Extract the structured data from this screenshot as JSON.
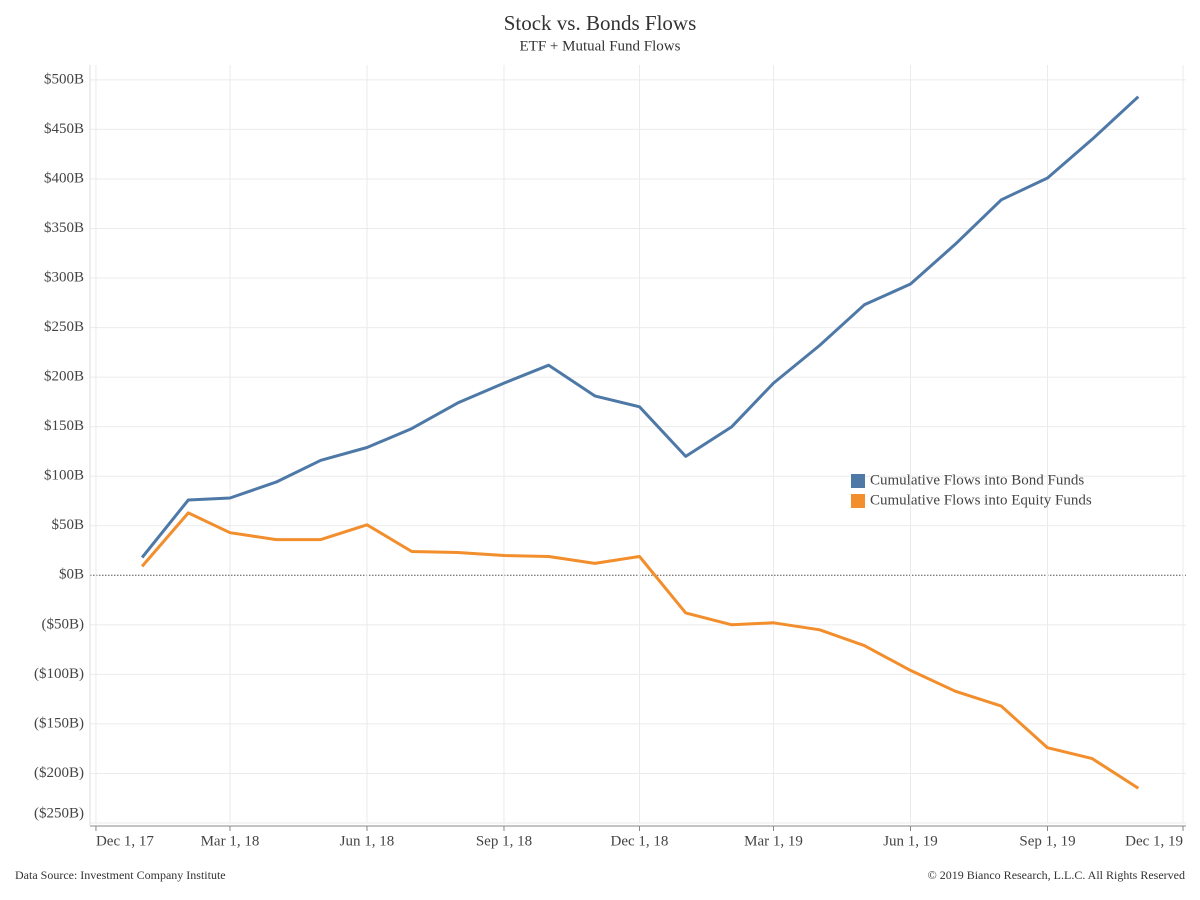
{
  "chart_data": {
    "type": "line",
    "title": "Stock vs. Bonds Flows",
    "subtitle": "ETF + Mutual Fund Flows",
    "source": "Data Source: Investment Company Institute",
    "copyright": "© 2019 Bianco Research, L.L.C. All Rights Reserved",
    "x": [
      "2018-01-01",
      "2018-02-01",
      "2018-03-01",
      "2018-04-01",
      "2018-05-01",
      "2018-06-01",
      "2018-07-01",
      "2018-08-01",
      "2018-09-01",
      "2018-10-01",
      "2018-11-01",
      "2018-12-01",
      "2019-01-01",
      "2019-02-01",
      "2019-03-01",
      "2019-04-01",
      "2019-05-01",
      "2019-06-01",
      "2019-07-01",
      "2019-08-01",
      "2019-09-01",
      "2019-10-01",
      "2019-11-01"
    ],
    "series": [
      {
        "name": "Cumulative Flows into Bond Funds",
        "color": "#4e79a7",
        "values": [
          18,
          76,
          78,
          94,
          116,
          129,
          148,
          174,
          194,
          212,
          181,
          170,
          120,
          150,
          194,
          232,
          273,
          294,
          334,
          379,
          401,
          440,
          483
        ]
      },
      {
        "name": "Cumulative Flows into Equity Funds",
        "color": "#f28e2b",
        "values": [
          9,
          63,
          43,
          36,
          36,
          51,
          24,
          23,
          20,
          19,
          12,
          19,
          -38,
          -50,
          -48,
          -55,
          -71,
          -96,
          -117,
          -132,
          -174,
          -185,
          -215
        ]
      }
    ],
    "xlim": [
      "2017-11-27",
      "2019-12-03"
    ],
    "xticks": [
      {
        "value": "2017-12-01",
        "label": "Dec 1, 17"
      },
      {
        "value": "2018-03-01",
        "label": "Mar 1, 18"
      },
      {
        "value": "2018-06-01",
        "label": "Jun 1, 18"
      },
      {
        "value": "2018-09-01",
        "label": "Sep 1, 18"
      },
      {
        "value": "2018-12-01",
        "label": "Dec 1, 18"
      },
      {
        "value": "2019-03-01",
        "label": "Mar 1, 19"
      },
      {
        "value": "2019-06-01",
        "label": "Jun 1, 19"
      },
      {
        "value": "2019-09-01",
        "label": "Sep 1, 19"
      },
      {
        "value": "2019-12-01",
        "label": "Dec 1, 19"
      }
    ],
    "ylim": [
      -250,
      515
    ],
    "yticks": [
      {
        "value": 500,
        "label": "$500B"
      },
      {
        "value": 450,
        "label": "$450B"
      },
      {
        "value": 400,
        "label": "$400B"
      },
      {
        "value": 350,
        "label": "$350B"
      },
      {
        "value": 300,
        "label": "$300B"
      },
      {
        "value": 250,
        "label": "$250B"
      },
      {
        "value": 200,
        "label": "$200B"
      },
      {
        "value": 150,
        "label": "$150B"
      },
      {
        "value": 100,
        "label": "$100B"
      },
      {
        "value": 50,
        "label": "$50B"
      },
      {
        "value": 0,
        "label": "$0B"
      },
      {
        "value": -50,
        "label": "($50B)"
      },
      {
        "value": -100,
        "label": "($100B)"
      },
      {
        "value": -150,
        "label": "($150B)"
      },
      {
        "value": -200,
        "label": "($200B)"
      },
      {
        "value": -250,
        "label": "($250B)"
      }
    ],
    "grid": true
  }
}
